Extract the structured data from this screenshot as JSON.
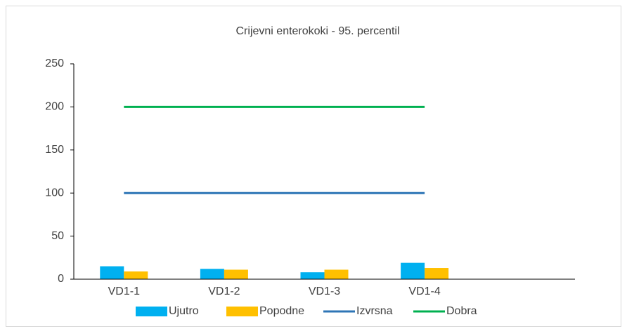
{
  "chart_data": {
    "type": "bar",
    "title": "Crijevni enterokoki - 95. percentil",
    "categories": [
      "VD1-1",
      "VD1-2",
      "VD1-3",
      "VD1-4",
      null
    ],
    "series": [
      {
        "name": "Ujutro",
        "color": "#00b0f0",
        "kind": "bar",
        "values": [
          15,
          12,
          8,
          19,
          null
        ]
      },
      {
        "name": "Popodne",
        "color": "#ffc000",
        "kind": "bar",
        "values": [
          9,
          11,
          11,
          13,
          null
        ]
      },
      {
        "name": "Izvrsna",
        "color": "#2e75b6",
        "kind": "line",
        "values": [
          100,
          100,
          100,
          100,
          null
        ]
      },
      {
        "name": "Dobra",
        "color": "#00b050",
        "kind": "line",
        "values": [
          200,
          200,
          200,
          200,
          null
        ]
      }
    ],
    "ylim": [
      0,
      250
    ],
    "yticks": [
      0,
      50,
      100,
      150,
      200,
      250
    ],
    "grid": false,
    "legend": "bottom"
  }
}
